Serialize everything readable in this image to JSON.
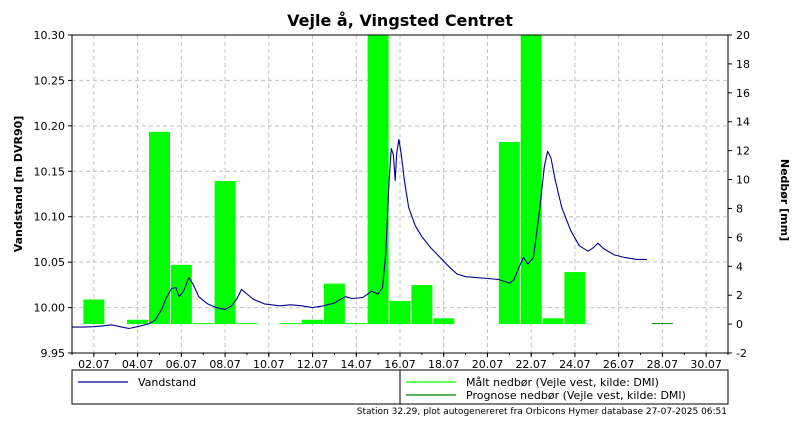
{
  "chart_data": {
    "type": "bar+line",
    "title": "Vejle å, Vingsted Centret",
    "ylabel_left": "Vandstand [m DVR90]",
    "ylabel_right": "Nedbør [mm]",
    "ylim_left": [
      9.95,
      10.3
    ],
    "yticks_left": [
      "10.30",
      "10.25",
      "10.20",
      "10.15",
      "10.10",
      "10.05",
      "10.00",
      "9.95"
    ],
    "ylim_right": [
      -2,
      20
    ],
    "yticks_right": [
      "20",
      "18",
      "16",
      "14",
      "12",
      "10",
      "8",
      "6",
      "4",
      "2",
      "0",
      "-2"
    ],
    "xlim_days": [
      1,
      31
    ],
    "xticks": [
      "02.07",
      "04.07",
      "06.07",
      "08.07",
      "10.07",
      "12.07",
      "14.07",
      "16.07",
      "18.07",
      "20.07",
      "22.07",
      "24.07",
      "26.07",
      "28.07",
      "30.07"
    ],
    "grid": true,
    "legend": {
      "vandstand": "Vandstand",
      "maalt": "Målt nedbør (Vejle vest, kilde: DMI)",
      "prognose": "Prognose nedbør (Vejle vest, kilde: DMI)"
    },
    "footer": "Station 32.29, plot autogenereret fra Orbicons Hymer database 27-07-2025 06:51",
    "colors": {
      "vandstand": "#00008B",
      "maalt": "#00FF00",
      "prognose": "#008000",
      "grid": "#c0c0c0"
    },
    "rain_bars": [
      {
        "day": 2.0,
        "mm": 1.7
      },
      {
        "day": 4.0,
        "mm": 0.3
      },
      {
        "day": 5.0,
        "mm": 13.3
      },
      {
        "day": 6.0,
        "mm": 4.1
      },
      {
        "day": 7.0,
        "mm": 0.05
      },
      {
        "day": 8.0,
        "mm": 9.9
      },
      {
        "day": 9.0,
        "mm": 0.05
      },
      {
        "day": 11.0,
        "mm": 0.0
      },
      {
        "day": 12.0,
        "mm": 0.3
      },
      {
        "day": 13.0,
        "mm": 2.8
      },
      {
        "day": 14.0,
        "mm": 0.05
      },
      {
        "day": 15.0,
        "mm": 20.0
      },
      {
        "day": 16.0,
        "mm": 1.6
      },
      {
        "day": 17.0,
        "mm": 2.7
      },
      {
        "day": 18.0,
        "mm": 0.4
      },
      {
        "day": 21.0,
        "mm": 12.6
      },
      {
        "day": 22.0,
        "mm": 20.0
      },
      {
        "day": 23.0,
        "mm": 0.4
      },
      {
        "day": 24.0,
        "mm": 3.6
      }
    ],
    "forecast_bars": [
      {
        "day": 28.0,
        "mm": 0.05
      }
    ],
    "vandstand": [
      {
        "day": 1.0,
        "v": 9.9785
      },
      {
        "day": 1.5,
        "v": 9.9785
      },
      {
        "day": 2.0,
        "v": 9.979
      },
      {
        "day": 2.5,
        "v": 9.98
      },
      {
        "day": 2.8,
        "v": 9.981
      },
      {
        "day": 3.2,
        "v": 9.979
      },
      {
        "day": 3.6,
        "v": 9.977
      },
      {
        "day": 4.0,
        "v": 9.979
      },
      {
        "day": 4.5,
        "v": 9.982
      },
      {
        "day": 4.8,
        "v": 9.986
      },
      {
        "day": 5.1,
        "v": 9.998
      },
      {
        "day": 5.3,
        "v": 10.01
      },
      {
        "day": 5.55,
        "v": 10.021
      },
      {
        "day": 5.75,
        "v": 10.022
      },
      {
        "day": 5.9,
        "v": 10.012
      },
      {
        "day": 6.1,
        "v": 10.018
      },
      {
        "day": 6.35,
        "v": 10.033
      },
      {
        "day": 6.55,
        "v": 10.025
      },
      {
        "day": 6.8,
        "v": 10.012
      },
      {
        "day": 7.2,
        "v": 10.004
      },
      {
        "day": 7.6,
        "v": 10.0
      },
      {
        "day": 8.0,
        "v": 9.998
      },
      {
        "day": 8.3,
        "v": 10.002
      },
      {
        "day": 8.55,
        "v": 10.01
      },
      {
        "day": 8.75,
        "v": 10.02
      },
      {
        "day": 8.95,
        "v": 10.016
      },
      {
        "day": 9.3,
        "v": 10.009
      },
      {
        "day": 9.8,
        "v": 10.004
      },
      {
        "day": 10.5,
        "v": 10.002
      },
      {
        "day": 11.0,
        "v": 10.003
      },
      {
        "day": 11.5,
        "v": 10.002
      },
      {
        "day": 12.0,
        "v": 10.0
      },
      {
        "day": 12.5,
        "v": 10.002
      },
      {
        "day": 13.0,
        "v": 10.005
      },
      {
        "day": 13.5,
        "v": 10.012
      },
      {
        "day": 13.8,
        "v": 10.01
      },
      {
        "day": 14.3,
        "v": 10.011
      },
      {
        "day": 14.7,
        "v": 10.018
      },
      {
        "day": 15.0,
        "v": 10.015
      },
      {
        "day": 15.2,
        "v": 10.022
      },
      {
        "day": 15.35,
        "v": 10.06
      },
      {
        "day": 15.5,
        "v": 10.14
      },
      {
        "day": 15.6,
        "v": 10.175
      },
      {
        "day": 15.7,
        "v": 10.168
      },
      {
        "day": 15.78,
        "v": 10.14
      },
      {
        "day": 15.85,
        "v": 10.17
      },
      {
        "day": 15.95,
        "v": 10.185
      },
      {
        "day": 16.05,
        "v": 10.17
      },
      {
        "day": 16.2,
        "v": 10.14
      },
      {
        "day": 16.4,
        "v": 10.11
      },
      {
        "day": 16.7,
        "v": 10.09
      },
      {
        "day": 17.0,
        "v": 10.078
      },
      {
        "day": 17.4,
        "v": 10.066
      },
      {
        "day": 17.8,
        "v": 10.056
      },
      {
        "day": 18.2,
        "v": 10.046
      },
      {
        "day": 18.6,
        "v": 10.037
      },
      {
        "day": 19.0,
        "v": 10.034
      },
      {
        "day": 19.5,
        "v": 10.033
      },
      {
        "day": 20.0,
        "v": 10.032
      },
      {
        "day": 20.5,
        "v": 10.031
      },
      {
        "day": 21.0,
        "v": 10.027
      },
      {
        "day": 21.2,
        "v": 10.03
      },
      {
        "day": 21.45,
        "v": 10.045
      },
      {
        "day": 21.65,
        "v": 10.055
      },
      {
        "day": 21.85,
        "v": 10.048
      },
      {
        "day": 22.1,
        "v": 10.055
      },
      {
        "day": 22.4,
        "v": 10.11
      },
      {
        "day": 22.6,
        "v": 10.155
      },
      {
        "day": 22.75,
        "v": 10.172
      },
      {
        "day": 22.9,
        "v": 10.165
      },
      {
        "day": 23.1,
        "v": 10.14
      },
      {
        "day": 23.4,
        "v": 10.11
      },
      {
        "day": 23.8,
        "v": 10.085
      },
      {
        "day": 24.2,
        "v": 10.068
      },
      {
        "day": 24.6,
        "v": 10.062
      },
      {
        "day": 24.85,
        "v": 10.066
      },
      {
        "day": 25.05,
        "v": 10.071
      },
      {
        "day": 25.3,
        "v": 10.065
      },
      {
        "day": 25.8,
        "v": 10.058
      },
      {
        "day": 26.3,
        "v": 10.055
      },
      {
        "day": 26.8,
        "v": 10.053
      },
      {
        "day": 27.3,
        "v": 10.053
      }
    ]
  }
}
